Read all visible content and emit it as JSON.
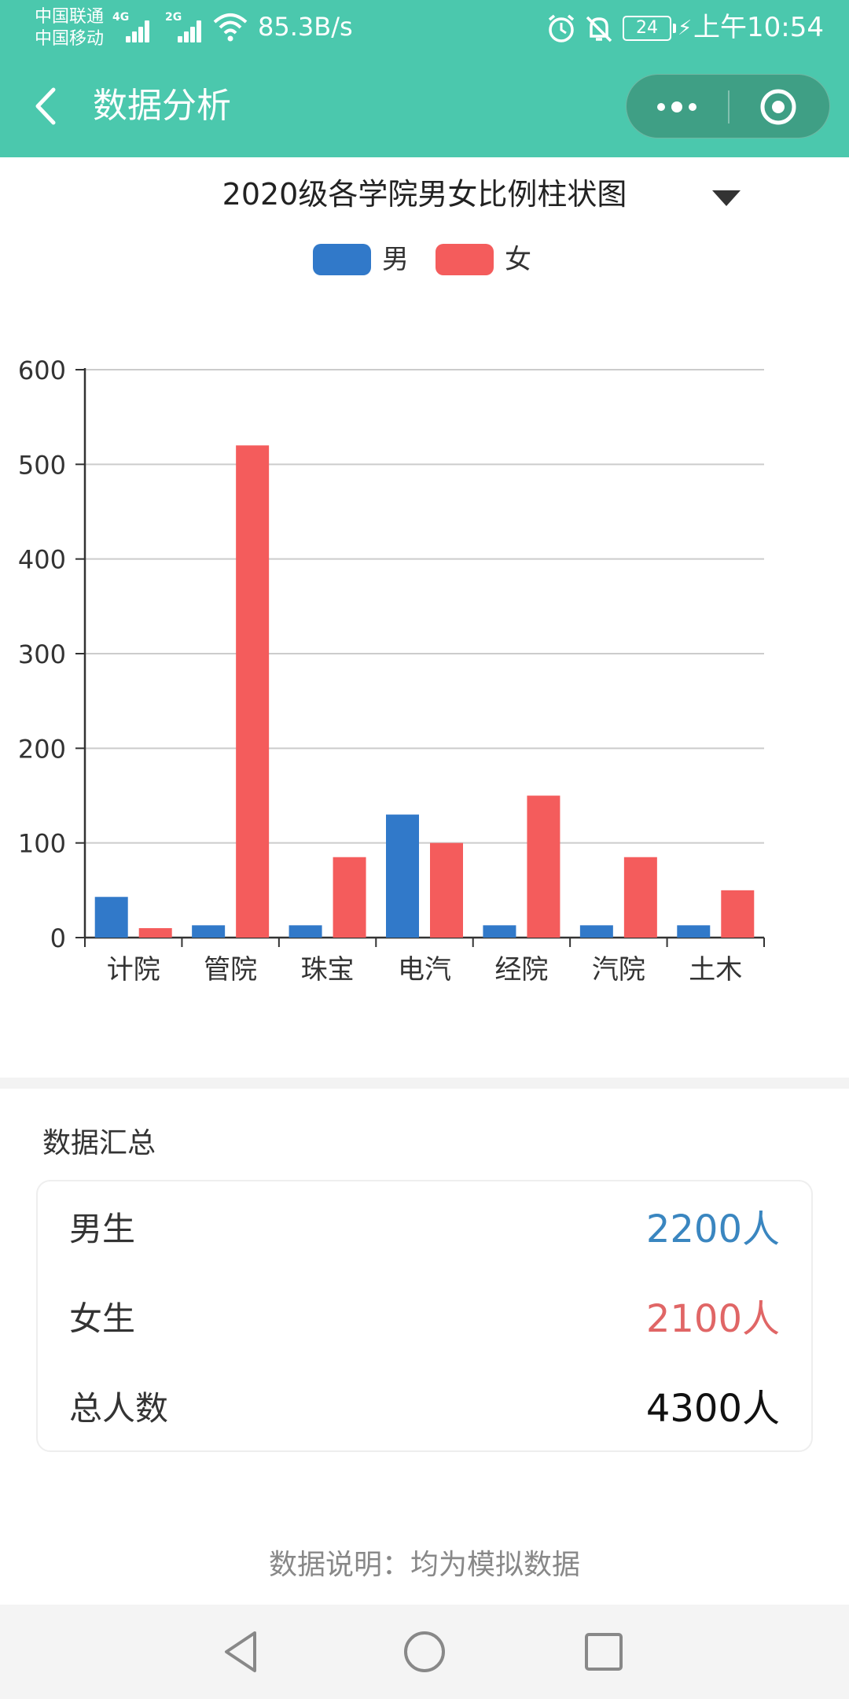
{
  "status_bar": {
    "carrier_1": "中国联通",
    "carrier_2": "中国移动",
    "network_1": "4G",
    "network_2": "2G",
    "speed": "85.3B/s",
    "battery": "24",
    "time": "上午10:54",
    "icons": [
      "signal-icon",
      "wifi-icon",
      "alarm-icon",
      "mute-bell-icon",
      "battery-icon",
      "charging-icon"
    ]
  },
  "header": {
    "title": "数据分析",
    "icons": [
      "back-icon",
      "more-icon",
      "close-target-icon"
    ],
    "background": "#4bc8ad",
    "capsule_color": "#3f9f85"
  },
  "chart": {
    "title": "2020级各学院男女比例柱状图"
  },
  "chart_data": {
    "type": "bar",
    "title": "2020级各学院男女比例柱状图",
    "categories": [
      "计院",
      "管院",
      "珠宝",
      "电汽",
      "经院",
      "汽院",
      "土木"
    ],
    "series": [
      {
        "name": "男",
        "color": "#3179c9",
        "values": [
          43,
          13,
          13,
          130,
          13,
          13,
          13
        ]
      },
      {
        "name": "女",
        "color": "#f45c5c",
        "values": [
          10,
          520,
          85,
          100,
          150,
          85,
          50
        ]
      }
    ],
    "y_ticks": [
      "0",
      "100",
      "200",
      "300",
      "400",
      "500",
      "600"
    ],
    "ylim": [
      0,
      600
    ],
    "grid": true,
    "legend_position": "top-center"
  },
  "summary": {
    "title": "数据汇总",
    "rows": [
      {
        "label": "男生",
        "value": "2200人",
        "color": "#3a86c0"
      },
      {
        "label": "女生",
        "value": "2100人",
        "color": "#e06666"
      },
      {
        "label": "总人数",
        "value": "4300人",
        "color": "#111111"
      }
    ]
  },
  "note": "数据说明：均为模拟数据",
  "nav_bar": {
    "icons": [
      "nav-back-icon",
      "nav-home-icon",
      "nav-recents-icon"
    ]
  }
}
